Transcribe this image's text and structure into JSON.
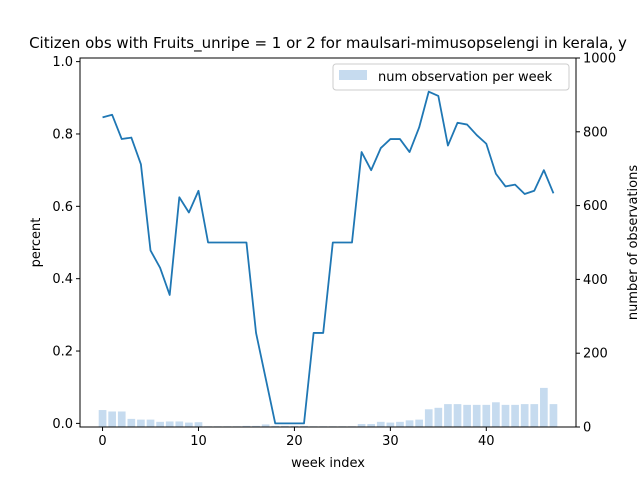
{
  "chart_data": {
    "type": "line",
    "title": "Citizen obs with Fruits_unripe = 1 or 2 for maulsari-mimusopselengi in kerala, y",
    "xlabel": "week index",
    "ylabel": "percent",
    "y2label": "number of observations",
    "xlim": [
      -2.35,
      49.35
    ],
    "ylim": [
      -0.01,
      1.01
    ],
    "y2lim": [
      0,
      1000
    ],
    "xticks": [
      0,
      10,
      20,
      30,
      40
    ],
    "yticks": [
      0.0,
      0.2,
      0.4,
      0.6,
      0.8,
      1.0
    ],
    "y2ticks": [
      0,
      200,
      400,
      600,
      800,
      1000
    ],
    "xtick_labels": [
      "0",
      "10",
      "20",
      "30",
      "40"
    ],
    "ytick_labels": [
      "0.0",
      "0.2",
      "0.4",
      "0.6",
      "0.8",
      "1.0"
    ],
    "y2tick_labels": [
      "0",
      "200",
      "400",
      "600",
      "800",
      "1000"
    ],
    "grid": false,
    "legend_position": "top-right",
    "line_color": "#1f77b4",
    "bar_color": "#c6dbef",
    "series": [
      {
        "type": "line",
        "axis": "left",
        "x": [
          0,
          1,
          2,
          3,
          4,
          5,
          6,
          7,
          8,
          9,
          10,
          11,
          12,
          13,
          14,
          15,
          16,
          17,
          18,
          19,
          20,
          21,
          22,
          23,
          24,
          25,
          26,
          27,
          28,
          29,
          30,
          31,
          32,
          33,
          34,
          35,
          36,
          37,
          38,
          39,
          40,
          41,
          42,
          43,
          44,
          45,
          46,
          47
        ],
        "values": [
          0.846,
          0.853,
          0.786,
          0.79,
          0.716,
          0.478,
          0.43,
          0.355,
          0.625,
          0.583,
          0.643,
          0.5,
          0.5,
          0.5,
          0.5,
          0.5,
          0.25,
          0.125,
          0.0,
          0.0,
          0.0,
          0.0,
          0.25,
          0.25,
          0.5,
          0.5,
          0.5,
          0.75,
          0.7,
          0.761,
          0.786,
          0.786,
          0.75,
          0.818,
          0.917,
          0.905,
          0.768,
          0.831,
          0.826,
          0.797,
          0.773,
          0.69,
          0.655,
          0.66,
          0.634,
          0.643,
          0.7,
          0.636
        ]
      },
      {
        "type": "bar",
        "axis": "right",
        "name": "num observation per week",
        "x": [
          0,
          1,
          2,
          3,
          4,
          5,
          6,
          7,
          8,
          9,
          10,
          11,
          12,
          13,
          14,
          15,
          16,
          17,
          18,
          19,
          20,
          21,
          22,
          23,
          24,
          25,
          26,
          27,
          28,
          29,
          30,
          31,
          32,
          33,
          34,
          35,
          36,
          37,
          38,
          39,
          40,
          41,
          42,
          43,
          44,
          45,
          46,
          47
        ],
        "values": [
          46,
          42,
          42,
          22,
          20,
          20,
          14,
          15,
          15,
          12,
          13,
          2,
          2,
          2,
          2,
          3,
          3,
          7,
          3,
          3,
          3,
          3,
          2,
          2,
          2,
          2,
          2,
          8,
          8,
          14,
          12,
          14,
          18,
          20,
          48,
          52,
          62,
          62,
          60,
          60,
          60,
          67,
          60,
          60,
          62,
          62,
          106,
          62
        ]
      }
    ]
  }
}
